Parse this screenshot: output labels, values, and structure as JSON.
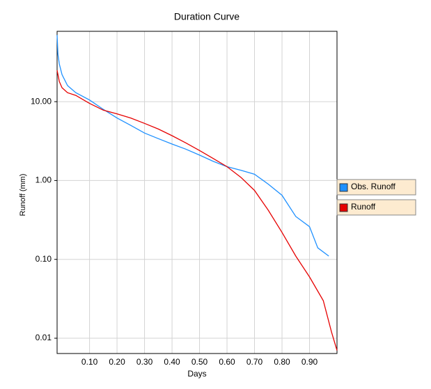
{
  "chart_data": {
    "type": "line",
    "title": "Duration Curve",
    "x_label": "Days",
    "y_label": "Runoff (mm)",
    "xlim": [
      -0.018,
      1.0
    ],
    "ylim": [
      0.0064,
      78
    ],
    "log_y": true,
    "grid": true,
    "legend_position": "right",
    "xticks": [
      {
        "value": 0.1,
        "label": "0.10"
      },
      {
        "value": 0.2,
        "label": "0.20"
      },
      {
        "value": 0.3,
        "label": "0.30"
      },
      {
        "value": 0.4,
        "label": "0.40"
      },
      {
        "value": 0.5,
        "label": "0.50"
      },
      {
        "value": 0.6,
        "label": "0.60"
      },
      {
        "value": 0.7,
        "label": "0.70"
      },
      {
        "value": 0.8,
        "label": "0.80"
      },
      {
        "value": 0.9,
        "label": "0.90"
      }
    ],
    "yticks": [
      {
        "value": 0.01,
        "label": "0.01"
      },
      {
        "value": 0.1,
        "label": "0.10"
      },
      {
        "value": 1,
        "label": "1.00"
      },
      {
        "value": 10,
        "label": "10.00"
      }
    ],
    "series": [
      {
        "name": "Obs. Runoff",
        "color": "#1e90ff",
        "x": [
          -0.018,
          -0.015,
          -0.01,
          0.0,
          0.02,
          0.05,
          0.1,
          0.15,
          0.2,
          0.25,
          0.3,
          0.35,
          0.4,
          0.45,
          0.5,
          0.55,
          0.6,
          0.65,
          0.7,
          0.75,
          0.8,
          0.85,
          0.9,
          0.93,
          0.97
        ],
        "values": [
          70,
          40,
          30,
          22,
          16,
          13,
          10.5,
          8,
          6.2,
          5,
          4,
          3.4,
          2.9,
          2.5,
          2.1,
          1.75,
          1.5,
          1.35,
          1.2,
          0.9,
          0.65,
          0.35,
          0.26,
          0.14,
          0.11
        ]
      },
      {
        "name": "Runoff",
        "color": "#e60000",
        "x": [
          -0.018,
          -0.01,
          0.0,
          0.02,
          0.05,
          0.1,
          0.15,
          0.2,
          0.25,
          0.3,
          0.35,
          0.4,
          0.45,
          0.5,
          0.55,
          0.6,
          0.65,
          0.7,
          0.75,
          0.8,
          0.85,
          0.9,
          0.95,
          0.98,
          1.0
        ],
        "values": [
          25,
          18,
          15,
          13,
          12,
          9.5,
          7.8,
          7,
          6.2,
          5.3,
          4.5,
          3.7,
          3,
          2.4,
          1.9,
          1.5,
          1.1,
          0.75,
          0.42,
          0.22,
          0.11,
          0.06,
          0.03,
          0.012,
          0.007
        ]
      }
    ]
  }
}
